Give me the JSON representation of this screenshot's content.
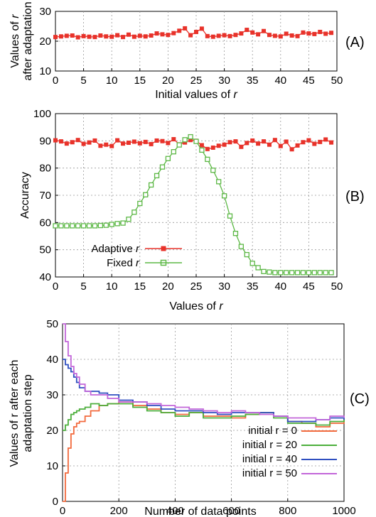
{
  "chart_data": [
    {
      "type": "scatter",
      "panel_label": "(A)",
      "xlabel_prefix": "Initial values of ",
      "xlabel_var": "r",
      "ylabel_line1_prefix": "Values of ",
      "ylabel_line1_var": "r",
      "ylabel_line2": "after adaptation",
      "xlim": [
        0,
        50
      ],
      "ylim": [
        10,
        30
      ],
      "xticks": [
        0,
        5,
        10,
        15,
        20,
        25,
        30,
        35,
        40,
        45,
        50
      ],
      "yticks": [
        10,
        20,
        30
      ],
      "grid": true,
      "series": [
        {
          "color": "#e8322a",
          "marker": "square",
          "x": [
            0,
            1,
            2,
            3,
            4,
            5,
            6,
            7,
            8,
            9,
            10,
            11,
            12,
            13,
            14,
            15,
            16,
            17,
            18,
            19,
            20,
            21,
            22,
            23,
            24,
            25,
            26,
            27,
            28,
            29,
            30,
            31,
            32,
            33,
            34,
            35,
            36,
            37,
            38,
            39,
            40,
            41,
            42,
            43,
            44,
            45,
            46,
            47,
            48,
            49
          ],
          "y": [
            21.4,
            21.6,
            21.8,
            21.9,
            21.3,
            21.7,
            21.5,
            21.4,
            21.9,
            21.6,
            21.5,
            22.0,
            21.4,
            22.2,
            21.5,
            21.8,
            21.6,
            21.9,
            22.6,
            22.3,
            22.1,
            22.7,
            23.5,
            24.3,
            22.0,
            23.1,
            24.2,
            21.7,
            21.5,
            21.8,
            22.0,
            21.7,
            22.1,
            22.6,
            23.8,
            22.9,
            22.3,
            23.4,
            22.1,
            21.8,
            21.6,
            22.5,
            21.9,
            21.7,
            22.9,
            22.6,
            22.4,
            23.1,
            22.5,
            22.8
          ]
        }
      ]
    },
    {
      "type": "line",
      "panel_label": "(B)",
      "xlabel_prefix": "Values of ",
      "xlabel_var": "r",
      "ylabel": "Accuracy",
      "xlim": [
        0,
        50
      ],
      "ylim": [
        40,
        100
      ],
      "xticks": [
        0,
        5,
        10,
        15,
        20,
        25,
        30,
        35,
        40,
        45,
        50
      ],
      "yticks": [
        40,
        50,
        60,
        70,
        80,
        90,
        100
      ],
      "grid": true,
      "legend_position": "bottom-left",
      "series": [
        {
          "name_prefix": "Adaptive ",
          "name_var": "r",
          "color": "#e8322a",
          "marker": "square",
          "x": [
            0,
            1,
            2,
            3,
            4,
            5,
            6,
            7,
            8,
            9,
            10,
            11,
            12,
            13,
            14,
            15,
            16,
            17,
            18,
            19,
            20,
            21,
            22,
            23,
            24,
            25,
            26,
            27,
            28,
            29,
            30,
            31,
            32,
            33,
            34,
            35,
            36,
            37,
            38,
            39,
            40,
            41,
            42,
            43,
            44,
            45,
            46,
            47,
            48,
            49
          ],
          "y": [
            90.2,
            89.8,
            89.0,
            89.5,
            90.3,
            88.9,
            89.4,
            90.1,
            88.2,
            88.6,
            88.1,
            90.2,
            89.0,
            89.3,
            89.7,
            89.1,
            89.6,
            88.8,
            90.1,
            89.9,
            89.2,
            90.6,
            88.7,
            89.4,
            90.3,
            90.0,
            88.4,
            87.0,
            87.5,
            88.2,
            88.6,
            89.5,
            89.8,
            87.8,
            89.2,
            90.1,
            89.0,
            89.8,
            88.6,
            90.3,
            88.1,
            89.7,
            86.9,
            88.3,
            89.5,
            90.2,
            88.9,
            89.6,
            90.5,
            89.4
          ]
        },
        {
          "name_prefix": "Fixed ",
          "name_var": "r",
          "color": "#5db846",
          "marker": "square",
          "x": [
            0,
            1,
            2,
            3,
            4,
            5,
            6,
            7,
            8,
            9,
            10,
            11,
            12,
            13,
            14,
            15,
            16,
            17,
            18,
            19,
            20,
            21,
            22,
            23,
            24,
            25,
            26,
            27,
            28,
            29,
            30,
            31,
            32,
            33,
            34,
            35,
            36,
            37,
            38,
            39,
            40,
            41,
            42,
            43,
            44,
            45,
            46,
            47,
            48,
            49
          ],
          "y": [
            58.8,
            58.8,
            58.8,
            58.8,
            58.8,
            58.8,
            58.8,
            58.8,
            58.9,
            59.0,
            59.3,
            59.6,
            59.8,
            61.2,
            63.8,
            67.0,
            70.2,
            73.8,
            77.2,
            80.4,
            83.5,
            86.0,
            88.5,
            90.4,
            91.5,
            89.8,
            86.6,
            83.2,
            79.2,
            75.0,
            69.8,
            62.4,
            56.0,
            51.2,
            48.2,
            45.0,
            43.4,
            42.0,
            41.8,
            41.6,
            41.6,
            41.6,
            41.6,
            41.6,
            41.6,
            41.6,
            41.6,
            41.6,
            41.6,
            41.6
          ]
        }
      ]
    },
    {
      "type": "line",
      "panel_label": "(C)",
      "xlabel": "Number of data points",
      "ylabel_line1": "Values of r after each",
      "ylabel_line2": "adaptation step",
      "xlim": [
        0,
        1000
      ],
      "ylim": [
        0,
        50
      ],
      "xticks": [
        0,
        200,
        400,
        600,
        800,
        1000
      ],
      "yticks": [
        0,
        10,
        20,
        30,
        40,
        50
      ],
      "grid": true,
      "legend_position": "bottom-right",
      "series": [
        {
          "name": "initial r = 0",
          "color": "#f26a3d",
          "x": [
            0,
            10,
            20,
            30,
            40,
            50,
            60,
            80,
            100,
            130,
            160,
            200,
            250,
            300,
            350,
            400,
            450,
            500,
            550,
            600,
            650,
            700,
            750,
            800,
            850,
            900,
            950,
            1000
          ],
          "y": [
            0,
            8,
            15,
            19,
            21,
            22,
            22.5,
            24,
            25.5,
            27,
            27.5,
            28,
            27,
            26,
            25,
            24.5,
            25,
            24,
            24,
            23.5,
            24.5,
            25,
            24,
            22.5,
            22,
            21,
            22,
            23
          ]
        },
        {
          "name": "initial r = 20",
          "color": "#4caf3c",
          "x": [
            0,
            10,
            20,
            30,
            40,
            50,
            60,
            80,
            100,
            130,
            160,
            200,
            250,
            300,
            350,
            400,
            450,
            500,
            550,
            600,
            650,
            700,
            750,
            800,
            850,
            900,
            950,
            1000
          ],
          "y": [
            20,
            21.5,
            23,
            24.5,
            25,
            25.5,
            26,
            26.5,
            27.5,
            27,
            27.5,
            27.5,
            26.5,
            25.5,
            25,
            24,
            25,
            23.5,
            23.5,
            24,
            24.5,
            25,
            23.5,
            22,
            22,
            21.5,
            22.5,
            23.5
          ]
        },
        {
          "name": "initial r = 40",
          "color": "#2f4fc0",
          "x": [
            0,
            10,
            20,
            30,
            40,
            50,
            60,
            80,
            100,
            130,
            160,
            200,
            250,
            300,
            350,
            400,
            450,
            500,
            550,
            600,
            650,
            700,
            750,
            800,
            850,
            900,
            950,
            1000
          ],
          "y": [
            40,
            38.5,
            37.5,
            36.5,
            35,
            33.5,
            32,
            31,
            31,
            30.5,
            30,
            28.5,
            28,
            27,
            26,
            25.5,
            25.5,
            25,
            24.5,
            25,
            25,
            25,
            24,
            22.5,
            22.5,
            23,
            23.5,
            23
          ]
        },
        {
          "name": "initial r = 50",
          "color": "#c266d9",
          "x": [
            0,
            10,
            20,
            30,
            40,
            50,
            60,
            80,
            100,
            130,
            160,
            200,
            250,
            300,
            350,
            400,
            450,
            500,
            550,
            600,
            650,
            700,
            750,
            800,
            850,
            900,
            950,
            1000
          ],
          "y": [
            50,
            45,
            41,
            38,
            36,
            35,
            33,
            31,
            30,
            30,
            29,
            28,
            28,
            27.5,
            27,
            26.5,
            26,
            25.5,
            25,
            25.5,
            25,
            24.5,
            24,
            23.5,
            23.5,
            23,
            24,
            23.5
          ]
        }
      ]
    }
  ]
}
